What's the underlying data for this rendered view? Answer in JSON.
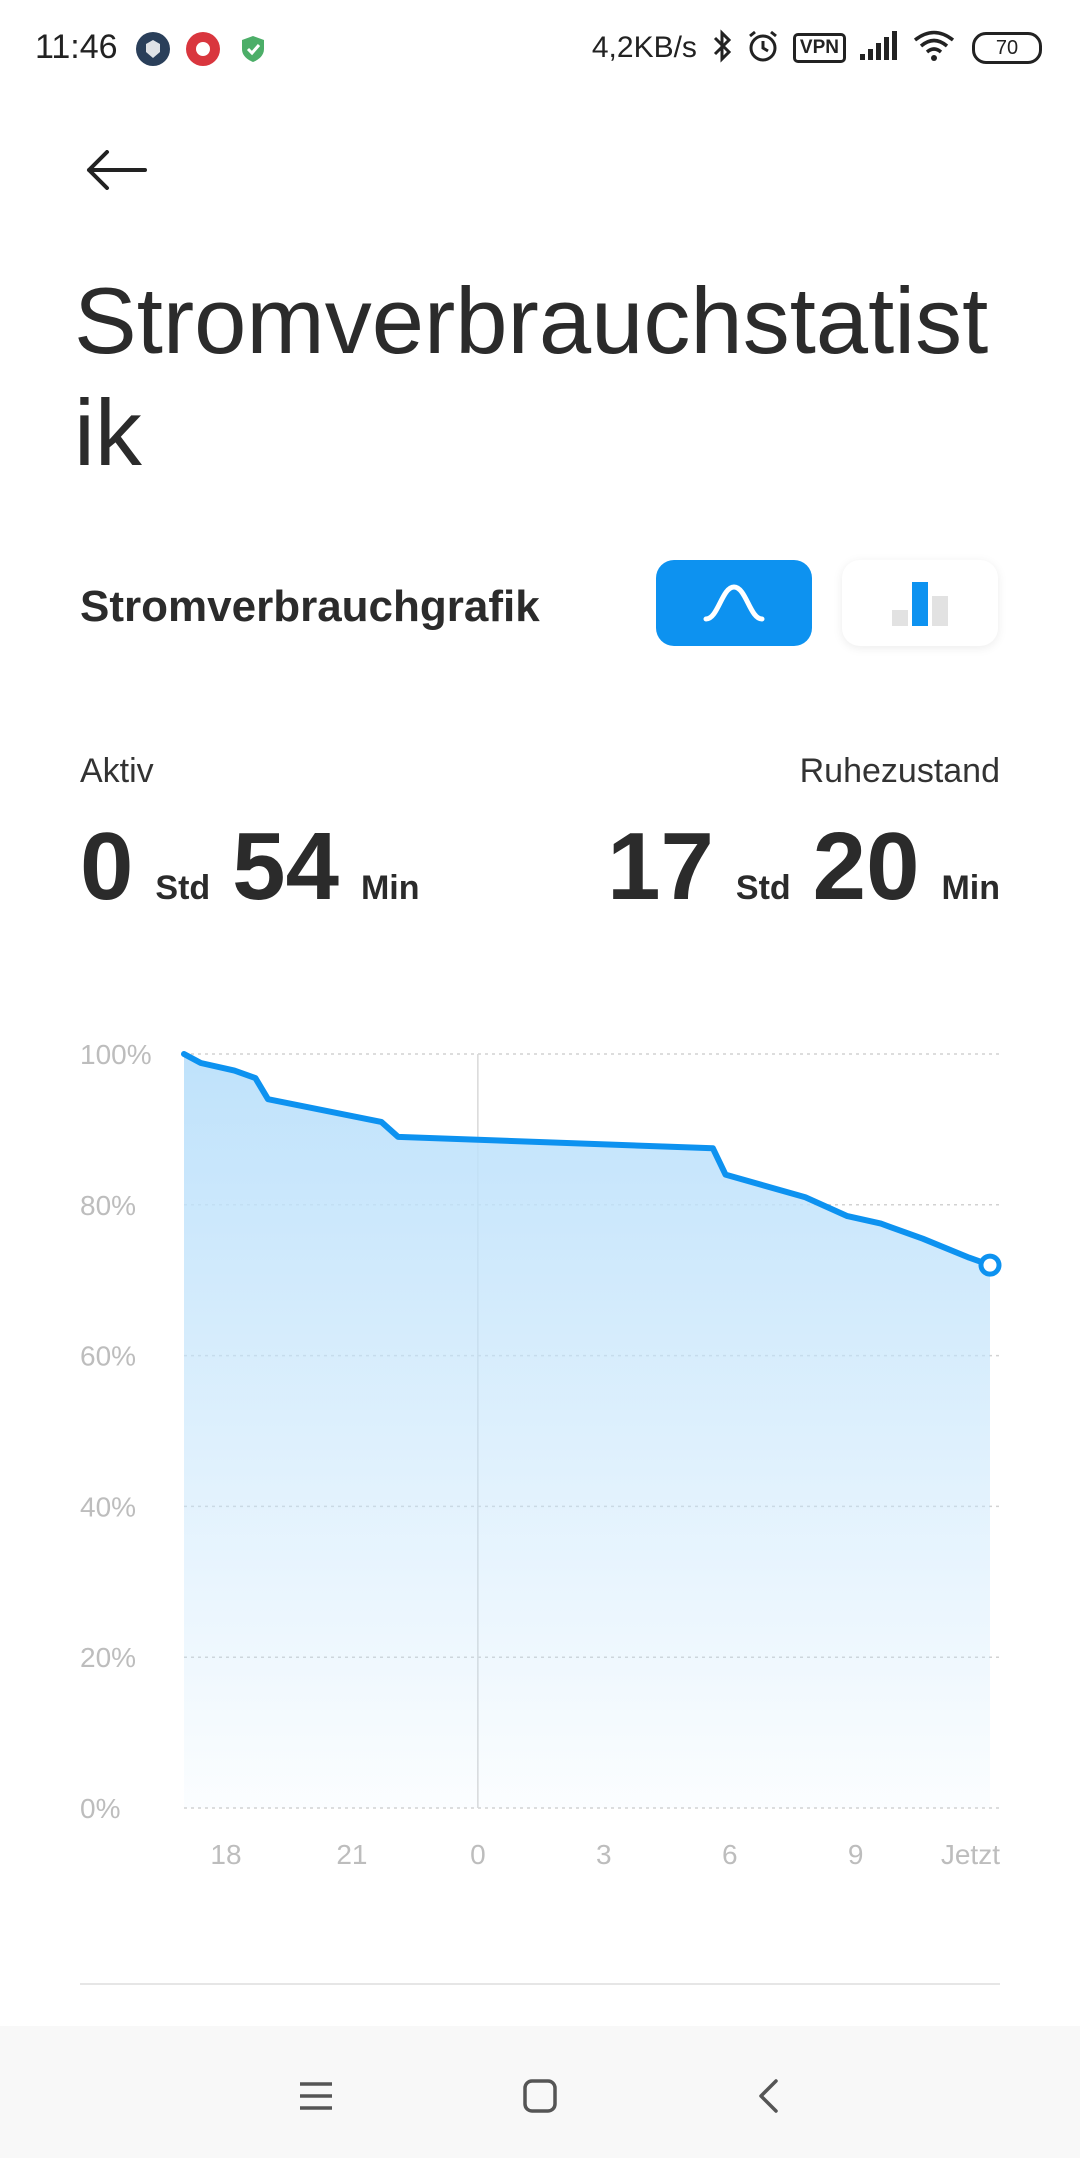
{
  "status_bar": {
    "time": "11:46",
    "network_speed": "4,2KB/s",
    "vpn_label": "VPN",
    "battery_level": "70",
    "icons": [
      "app-notification-icon",
      "app-notification-icon",
      "shield-icon",
      "bluetooth-icon",
      "alarm-icon",
      "signal-icon",
      "wifi-icon",
      "battery-icon"
    ]
  },
  "header": {
    "back_icon": "arrow-left-icon",
    "title": "Stromverbrauchstatistik"
  },
  "graph_section": {
    "title": "Stromverbrauchgrafik",
    "views": [
      {
        "name": "curve",
        "icon": "curve-icon",
        "selected": true
      },
      {
        "name": "bars",
        "icon": "bar-chart-icon",
        "selected": false
      }
    ]
  },
  "stats": {
    "active": {
      "label": "Aktiv",
      "hours": "0",
      "hours_unit": "Std",
      "minutes": "54",
      "minutes_unit": "Min"
    },
    "idle": {
      "label": "Ruhezustand",
      "hours": "17",
      "hours_unit": "Std",
      "minutes": "20",
      "minutes_unit": "Min"
    }
  },
  "colors": {
    "accent": "#0d92f0",
    "fill_top": "#bfe2fb",
    "grid": "#d2d2d2",
    "tick_text": "#bdbdbd"
  },
  "chart_data": {
    "type": "area",
    "y_ticks": [
      "100%",
      "80%",
      "60%",
      "40%",
      "20%",
      "0%"
    ],
    "ylim": [
      0,
      100
    ],
    "x_ticks": [
      "18",
      "21",
      "0",
      "3",
      "6",
      "9",
      "Jetzt"
    ],
    "x_hours": [
      18,
      21,
      24,
      27,
      30,
      33,
      36
    ],
    "xlim": [
      17,
      36.2
    ],
    "grid": true,
    "marker_at": "0",
    "series": [
      {
        "x": [
          17,
          17.4,
          18.2,
          18.7,
          19.0,
          21.7,
          22.1,
          29.6,
          29.9,
          31.8,
          32.8,
          33.6,
          34.6,
          35.7,
          36.2
        ],
        "values": [
          100,
          98.8,
          97.8,
          96.8,
          94,
          91,
          89,
          87.5,
          84,
          81,
          78.5,
          77.5,
          75.5,
          73,
          72
        ]
      }
    ]
  },
  "nav_bar": {
    "icons": [
      "menu-icon",
      "home-icon",
      "back-chevron-icon"
    ]
  }
}
